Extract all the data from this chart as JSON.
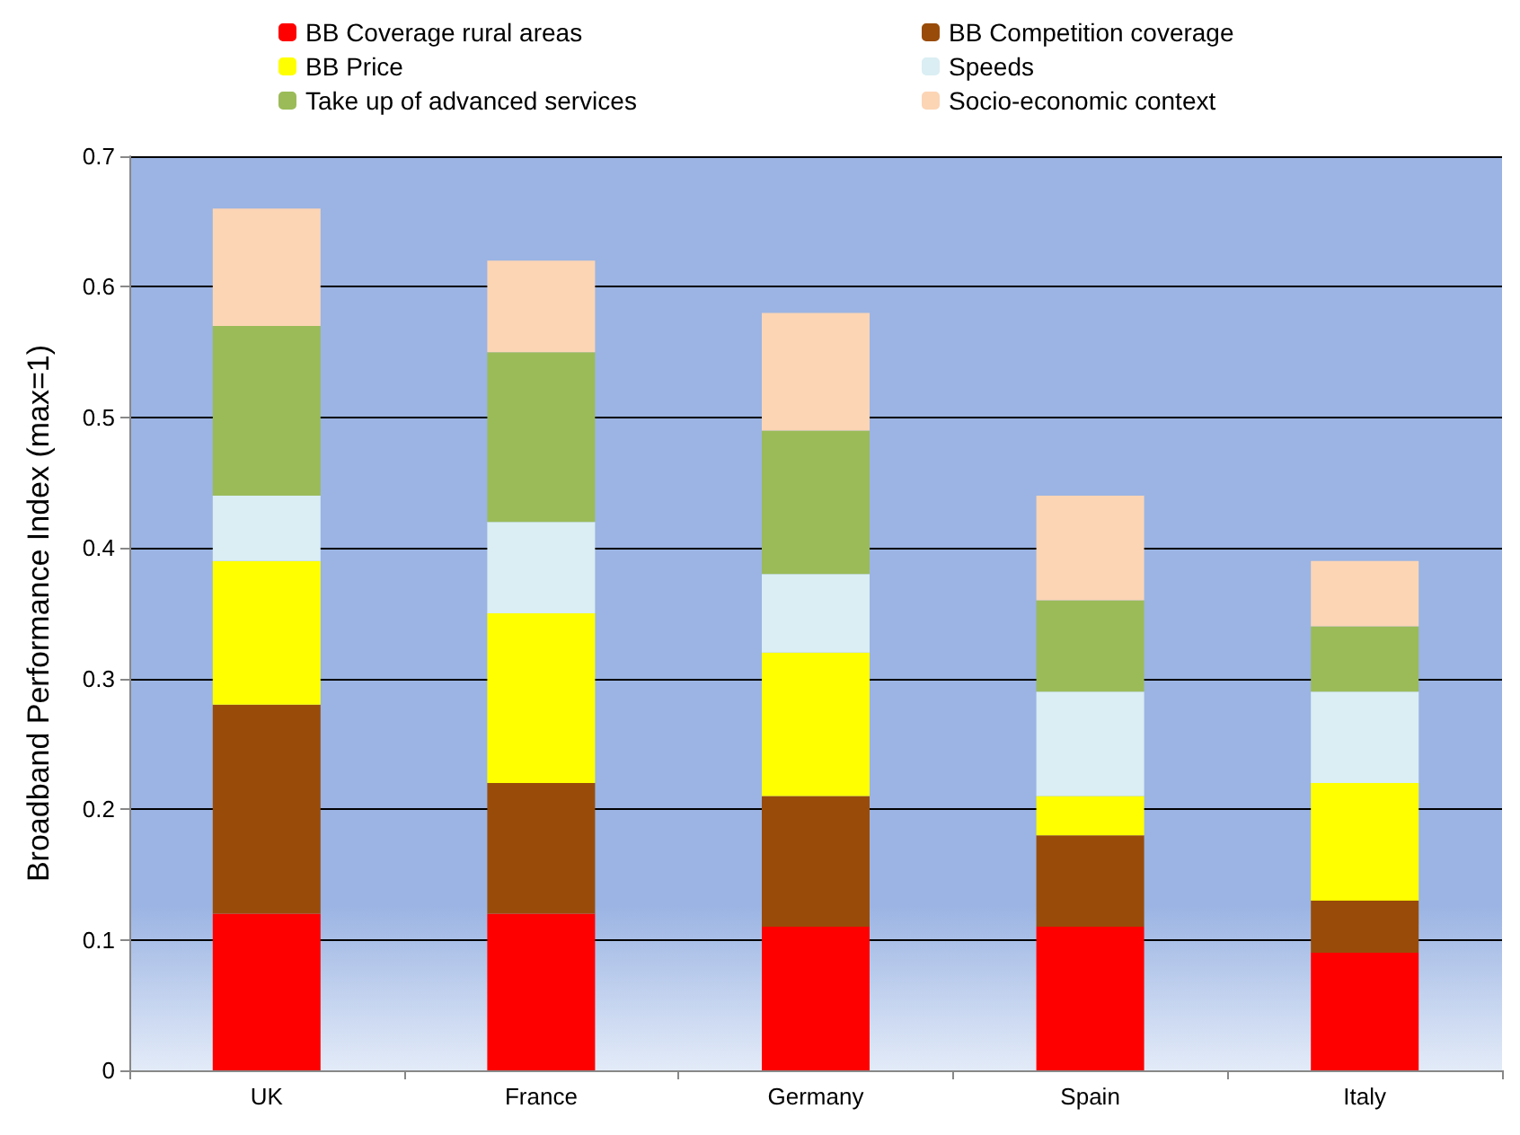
{
  "chart_data": {
    "type": "bar",
    "stacked": true,
    "ylabel": "Broadband Performance Index (max=1)",
    "categories": [
      "UK",
      "France",
      "Germany",
      "Spain",
      "Italy"
    ],
    "series": [
      {
        "name": "BB Coverage rural areas",
        "color": "#ff0000",
        "values": [
          0.12,
          0.12,
          0.11,
          0.11,
          0.09
        ]
      },
      {
        "name": "BB Competition coverage",
        "color": "#994c09",
        "values": [
          0.16,
          0.1,
          0.1,
          0.07,
          0.04
        ]
      },
      {
        "name": "BB Price",
        "color": "#ffff00",
        "values": [
          0.11,
          0.13,
          0.11,
          0.03,
          0.09
        ]
      },
      {
        "name": "Speeds",
        "color": "#daeef3",
        "values": [
          0.05,
          0.07,
          0.06,
          0.08,
          0.07
        ]
      },
      {
        "name": "Take up of advanced services",
        "color": "#9bbb59",
        "values": [
          0.13,
          0.13,
          0.11,
          0.07,
          0.05
        ]
      },
      {
        "name": "Socio-economic context",
        "color": "#fcd5b5",
        "values": [
          0.09,
          0.07,
          0.09,
          0.08,
          0.05
        ]
      }
    ],
    "ylim": [
      0,
      0.7
    ],
    "yticks": [
      0,
      0.1,
      0.2,
      0.3,
      0.4,
      0.5,
      0.6,
      0.7
    ],
    "grid": "y",
    "legend": "top"
  }
}
